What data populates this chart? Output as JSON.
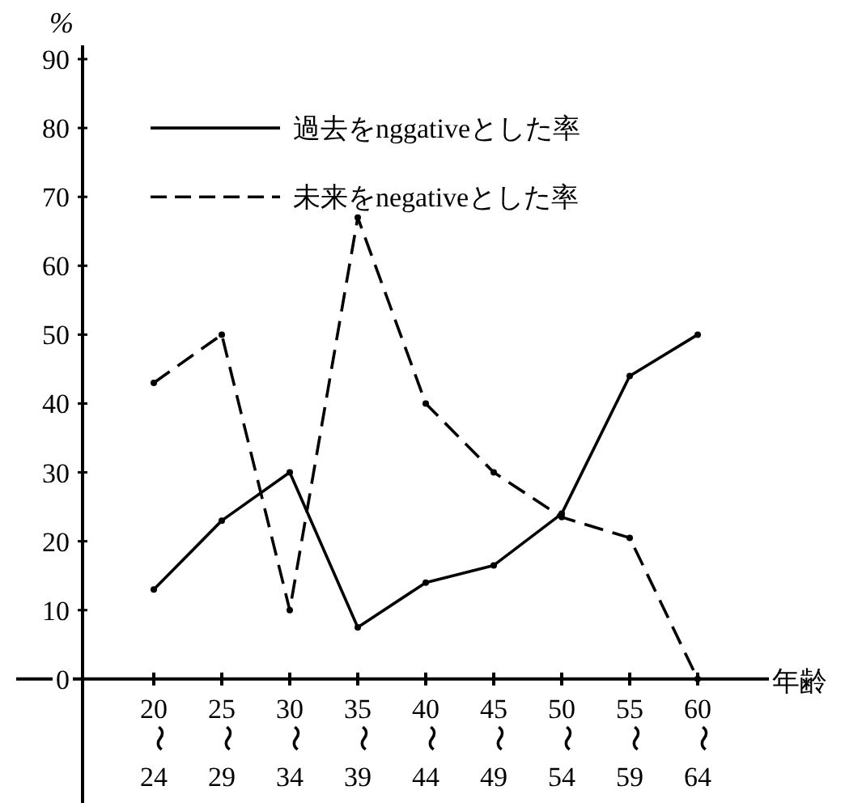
{
  "chart_data": {
    "type": "line",
    "ylabel": "%",
    "xlabel": "年齢",
    "categories": [
      "20\n〜\n24",
      "25\n〜\n29",
      "30\n〜\n34",
      "35\n〜\n39",
      "40\n〜\n44",
      "45\n〜\n49",
      "50\n〜\n54",
      "55\n〜\n59",
      "60\n〜\n64"
    ],
    "series": [
      {
        "name": "過去をnggativeとした率",
        "color": "#000000",
        "line_style": "solid",
        "values": [
          13,
          23,
          30,
          7.5,
          14,
          16.5,
          24,
          44,
          50
        ]
      },
      {
        "name": "未来をnegativeとした率",
        "color": "#000000",
        "line_style": "dashed",
        "values": [
          43,
          50,
          10,
          67,
          40,
          30,
          23.5,
          20.5,
          0
        ]
      }
    ],
    "ylim": [
      -18,
      92
    ],
    "yticks": [
      0,
      10,
      20,
      30,
      40,
      50,
      60,
      70,
      80,
      90
    ],
    "legend": "top left",
    "marker": "circle",
    "grid": false
  }
}
